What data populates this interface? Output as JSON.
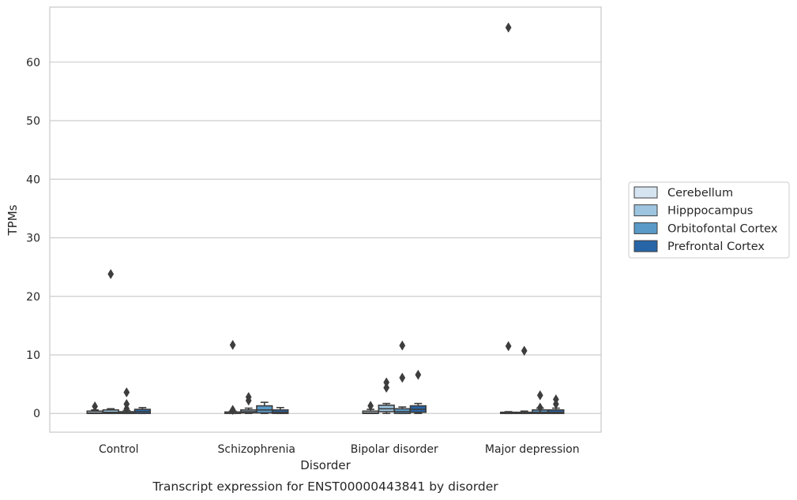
{
  "chart_data": {
    "type": "box",
    "title": "",
    "caption": "Transcript expression for ENST00000443841 by disorder",
    "xlabel": "Disorder",
    "ylabel": "TPMs",
    "ylim": [
      -3.2,
      69.4
    ],
    "yticks": [
      0,
      10,
      20,
      30,
      40,
      50,
      60
    ],
    "grid": "horizontal",
    "legend_position": "right",
    "categories": [
      "Control",
      "Schizophrenia",
      "Bipolar disorder",
      "Major depression"
    ],
    "series": [
      {
        "name": "Cerebellum",
        "color": "#d6e4f1",
        "boxes": [
          {
            "q1": 0.0,
            "median": 0.1,
            "q3": 0.4,
            "whisker_low": 0.0,
            "whisker_high": 0.6,
            "outliers": [
              1.2
            ]
          },
          {
            "q1": 0.0,
            "median": 0.05,
            "q3": 0.25,
            "whisker_low": 0.0,
            "whisker_high": 0.4,
            "outliers": [
              0.6,
              11.7
            ]
          },
          {
            "q1": 0.0,
            "median": 0.1,
            "q3": 0.4,
            "whisker_low": 0.0,
            "whisker_high": 0.7,
            "outliers": [
              1.3
            ]
          },
          {
            "q1": 0.0,
            "median": 0.05,
            "q3": 0.2,
            "whisker_low": 0.0,
            "whisker_high": 0.3,
            "outliers": [
              11.5,
              65.9
            ]
          }
        ]
      },
      {
        "name": "Hipppocampus",
        "color": "#9dc5e0",
        "boxes": [
          {
            "q1": 0.0,
            "median": 0.2,
            "q3": 0.6,
            "whisker_low": 0.0,
            "whisker_high": 0.8,
            "outliers": [
              23.8
            ]
          },
          {
            "q1": 0.1,
            "median": 0.3,
            "q3": 0.6,
            "whisker_low": 0.0,
            "whisker_high": 0.9,
            "outliers": [
              2.2,
              2.8
            ]
          },
          {
            "q1": 0.3,
            "median": 0.8,
            "q3": 1.4,
            "whisker_low": 0.0,
            "whisker_high": 1.7,
            "outliers": [
              4.4,
              5.3
            ]
          },
          {
            "q1": 0.0,
            "median": 0.1,
            "q3": 0.2,
            "whisker_low": 0.0,
            "whisker_high": 0.4,
            "outliers": [
              10.7
            ]
          }
        ]
      },
      {
        "name": "Orbitofontal Cortex",
        "color": "#5a9ac8",
        "boxes": [
          {
            "q1": 0.0,
            "median": 0.1,
            "q3": 0.3,
            "whisker_low": 0.0,
            "whisker_high": 0.5,
            "outliers": [
              0.8,
              1.6,
              3.6
            ]
          },
          {
            "q1": 0.1,
            "median": 0.6,
            "q3": 1.3,
            "whisker_low": 0.0,
            "whisker_high": 1.9,
            "outliers": []
          },
          {
            "q1": 0.0,
            "median": 0.3,
            "q3": 0.8,
            "whisker_low": 0.0,
            "whisker_high": 1.1,
            "outliers": [
              6.1,
              11.6
            ]
          },
          {
            "q1": 0.0,
            "median": 0.2,
            "q3": 0.6,
            "whisker_low": 0.0,
            "whisker_high": 0.9,
            "outliers": [
              1.0,
              3.1
            ]
          }
        ]
      },
      {
        "name": "Prefrontal Cortex",
        "color": "#2765a7",
        "boxes": [
          {
            "q1": 0.0,
            "median": 0.3,
            "q3": 0.7,
            "whisker_low": 0.0,
            "whisker_high": 1.0,
            "outliers": []
          },
          {
            "q1": 0.0,
            "median": 0.2,
            "q3": 0.6,
            "whisker_low": 0.0,
            "whisker_high": 1.0,
            "outliers": []
          },
          {
            "q1": 0.2,
            "median": 0.7,
            "q3": 1.3,
            "whisker_low": 0.0,
            "whisker_high": 1.7,
            "outliers": [
              6.6
            ]
          },
          {
            "q1": 0.0,
            "median": 0.2,
            "q3": 0.6,
            "whisker_low": 0.0,
            "whisker_high": 0.9,
            "outliers": [
              1.6,
              2.4
            ]
          }
        ]
      }
    ]
  }
}
